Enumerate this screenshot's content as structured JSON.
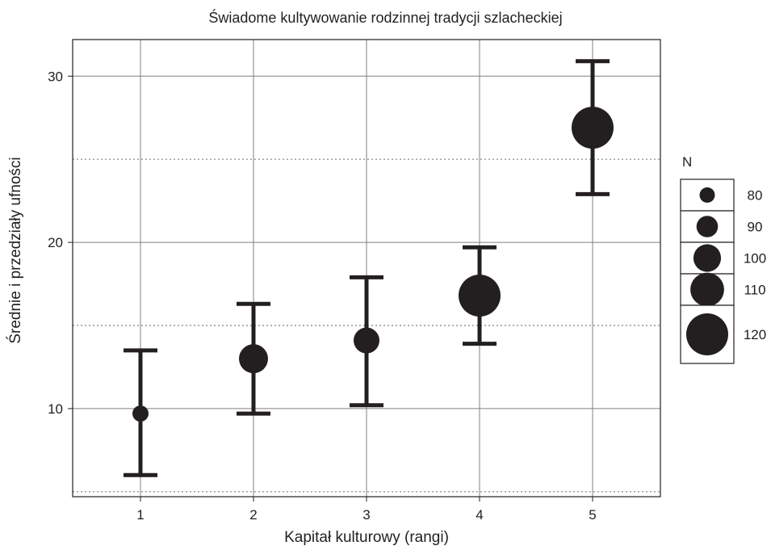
{
  "chart_data": {
    "type": "scatter",
    "title": "Świadome kultywowanie rodzinnej tradycji szlacheckiej",
    "xlabel": "Kapitał kulturowy (rangi)",
    "ylabel": "Średnie i przedziały ufności",
    "x_ticks": [
      "1",
      "2",
      "3",
      "4",
      "5"
    ],
    "y_ticks": [
      "10",
      "20",
      "30"
    ],
    "xlim": [
      0.4,
      5.6
    ],
    "ylim": [
      4.7,
      32.2
    ],
    "grid": true,
    "points": [
      {
        "x": 1,
        "mean": 9.7,
        "lower": 6.0,
        "upper": 13.5,
        "n": 80
      },
      {
        "x": 2,
        "mean": 13.0,
        "lower": 9.7,
        "upper": 16.3,
        "n": 100
      },
      {
        "x": 3,
        "mean": 14.1,
        "lower": 10.2,
        "upper": 17.9,
        "n": 95
      },
      {
        "x": 4,
        "mean": 16.8,
        "lower": 13.9,
        "upper": 19.7,
        "n": 120
      },
      {
        "x": 5,
        "mean": 26.9,
        "lower": 22.9,
        "upper": 30.9,
        "n": 120
      }
    ],
    "legend": {
      "title": "N",
      "placement": "right",
      "entries": [
        "80",
        "90",
        "100",
        "110",
        "120"
      ]
    },
    "colors": {
      "marker": "#231f20",
      "grid": "#808080",
      "background": "#ffffff"
    }
  }
}
